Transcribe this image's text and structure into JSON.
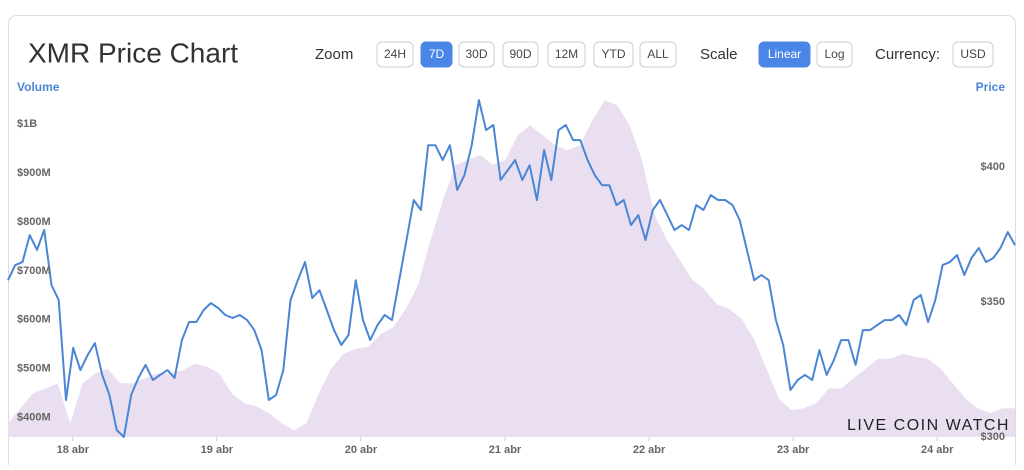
{
  "title": "XMR Price Chart",
  "controls": {
    "zoom_label": "Zoom",
    "zoom": [
      "24H",
      "7D",
      "30D",
      "90D",
      "12M",
      "YTD",
      "ALL"
    ],
    "zoom_active": 1,
    "scale_label": "Scale",
    "scale": [
      "Linear",
      "Log"
    ],
    "scale_active": 0,
    "currency_label": "Currency:",
    "currency": [
      "USD"
    ]
  },
  "watermark": "LIVE COIN WATCH",
  "chart_data": {
    "type": "line",
    "ylabel": "Volume",
    "y2label": "Price",
    "xlim": [
      17.55,
      24.54
    ],
    "xticks": [
      {
        "value": 18,
        "label": "18 abr"
      },
      {
        "value": 19,
        "label": "19 abr"
      },
      {
        "value": 20,
        "label": "20 abr"
      },
      {
        "value": 21,
        "label": "21 abr"
      },
      {
        "value": 22,
        "label": "22 abr"
      },
      {
        "value": 23,
        "label": "23 abr"
      },
      {
        "value": 24,
        "label": "24 abr"
      }
    ],
    "ylim": [
      360000000,
      1060000000
    ],
    "yticks": [
      {
        "value": 400000000,
        "label": "$400M"
      },
      {
        "value": 500000000,
        "label": "$500M"
      },
      {
        "value": 600000000,
        "label": "$600M"
      },
      {
        "value": 700000000,
        "label": "$700M"
      },
      {
        "value": 800000000,
        "label": "$800M"
      },
      {
        "value": 900000000,
        "label": "$900M"
      },
      {
        "value": 1000000000,
        "label": "$1B"
      }
    ],
    "y2lim": [
      300,
      426.7
    ],
    "y2ticks": [
      {
        "value": 300,
        "label": "$300"
      },
      {
        "value": 350,
        "label": "$350"
      },
      {
        "value": 400,
        "label": "$400"
      }
    ],
    "series": [
      {
        "kind": "area",
        "color": "#eadff1",
        "values": [
          388000000,
          419000000,
          449000000,
          459000000,
          470000000,
          388000000,
          470000000,
          490000000,
          500000000,
          470000000,
          470000000,
          480000000,
          490000000,
          490000000,
          496000000,
          510000000,
          504000000,
          490000000,
          449000000,
          429000000,
          423000000,
          409000000,
          388000000,
          374000000,
          388000000,
          449000000,
          500000000,
          530000000,
          541000000,
          545000000,
          571000000,
          585000000,
          622000000,
          673000000,
          764000000,
          846000000,
          917000000,
          927000000,
          937000000,
          917000000,
          927000000,
          978000000,
          998000000,
          978000000,
          957000000,
          947000000,
          957000000,
          1008000000,
          1049000000,
          1039000000,
          998000000,
          927000000,
          815000000,
          764000000,
          724000000,
          683000000,
          663000000,
          632000000,
          622000000,
          602000000,
          561000000,
          500000000,
          439000000,
          415000000,
          419000000,
          429000000,
          459000000,
          459000000,
          480000000,
          500000000,
          520000000,
          520000000,
          530000000,
          524000000,
          520000000,
          500000000,
          470000000,
          439000000,
          419000000,
          409000000,
          419000000,
          419000000
        ]
      },
      {
        "kind": "line",
        "axis": "y2",
        "color": "#4a86d4",
        "values": [
          358.1,
          363.7,
          364.8,
          374.8,
          369.3,
          376.7,
          356.3,
          350.7,
          313.7,
          333.0,
          324.8,
          330.4,
          334.8,
          323.0,
          315.6,
          302.6,
          300,
          315.6,
          321.9,
          326.7,
          321.1,
          323.0,
          324.8,
          321.9,
          335.9,
          342.6,
          342.6,
          347.0,
          349.6,
          347.8,
          345.2,
          344.1,
          345.2,
          343.3,
          339.6,
          332.2,
          313.7,
          315.6,
          324.8,
          350.7,
          358.1,
          364.8,
          351.5,
          354.4,
          347.0,
          339.6,
          334.1,
          337.8,
          358.1,
          343.3,
          335.9,
          341.5,
          345.2,
          343.3,
          358.1,
          373.0,
          387.8,
          384.1,
          408.1,
          408.1,
          402.6,
          408.1,
          391.5,
          397.0,
          408.1,
          424.8,
          413.7,
          415.6,
          395.2,
          398.9,
          402.6,
          395.2,
          400.7,
          387.8,
          406.3,
          395.2,
          413.7,
          415.6,
          410.0,
          410.0,
          402.6,
          397.0,
          393.3,
          393.3,
          385.9,
          387.8,
          378.5,
          382.2,
          373.0,
          384.1,
          387.8,
          382.2,
          376.7,
          378.5,
          376.7,
          385.9,
          384.1,
          389.6,
          387.8,
          387.8,
          385.9,
          380.4,
          369.3,
          358.1,
          360.0,
          358.1,
          343.3,
          334.1,
          317.4,
          321.1,
          323.0,
          321.1,
          332.2,
          323.0,
          328.5,
          335.9,
          335.9,
          326.7,
          339.6,
          339.6,
          341.5,
          343.3,
          343.3,
          345.2,
          341.5,
          350.7,
          352.6,
          342.6,
          350.7,
          363.7,
          364.8,
          367.4,
          360.0,
          366.3,
          370.0,
          364.8,
          366.3,
          370.0,
          375.9,
          371.1
        ]
      }
    ]
  }
}
